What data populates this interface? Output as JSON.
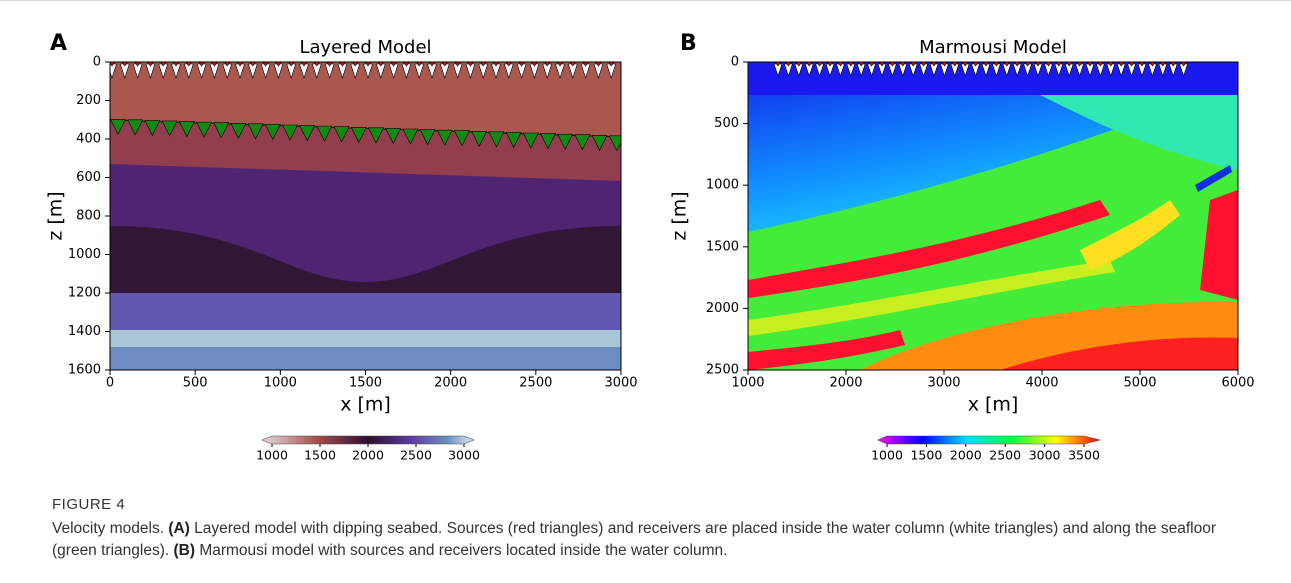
{
  "panels": [
    {
      "label": "A",
      "title": "Layered Model",
      "xlabel": "x [m]",
      "ylabel": "z [m]",
      "xlim": [
        0,
        3000
      ],
      "xticks": [
        0,
        500,
        1000,
        1500,
        2000,
        2500,
        3000
      ],
      "ylim": [
        0,
        1600
      ],
      "yticks": [
        0,
        200,
        400,
        600,
        800,
        1000,
        1200,
        1400,
        1600
      ],
      "clim": [
        1000,
        3000
      ],
      "cticks": [
        1000,
        1500,
        2000,
        2500,
        3000
      ]
    },
    {
      "label": "B",
      "title": "Marmousi Model",
      "xlabel": "x [m]",
      "ylabel": "z [m]",
      "xlim": [
        1000,
        6000
      ],
      "xticks": [
        1000,
        2000,
        3000,
        4000,
        5000,
        6000
      ],
      "ylim": [
        0,
        2500
      ],
      "yticks": [
        0,
        500,
        1000,
        1500,
        2000,
        2500
      ],
      "clim": [
        1000,
        3500
      ],
      "cticks": [
        1000,
        1500,
        2000,
        2500,
        3000,
        3500
      ]
    }
  ],
  "figure": {
    "label": "FIGURE 4",
    "caption": [
      "Velocity models. ",
      "(A)",
      " Layered model with dipping seabed. Sources (red triangles) and receivers are placed inside the water column (white triangles) and along the seafloor (green triangles). ",
      "(B)",
      " Marmousi model with sources and receivers located inside the water column."
    ]
  }
}
